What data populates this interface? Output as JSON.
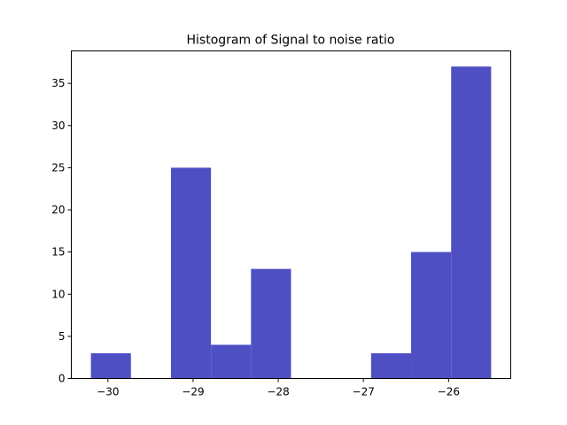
{
  "chart_data": {
    "type": "bar",
    "title": "Histogram of Signal to noise ratio",
    "xlabel": "",
    "ylabel": "",
    "bar_color": "#4f4fc4",
    "bins": [
      {
        "x0": -30.2,
        "x1": -29.73,
        "count": 3
      },
      {
        "x0": -29.73,
        "x1": -29.26,
        "count": 0
      },
      {
        "x0": -29.26,
        "x1": -28.79,
        "count": 25
      },
      {
        "x0": -28.79,
        "x1": -28.32,
        "count": 4
      },
      {
        "x0": -28.32,
        "x1": -27.85,
        "count": 13
      },
      {
        "x0": -27.85,
        "x1": -27.38,
        "count": 0
      },
      {
        "x0": -27.38,
        "x1": -26.91,
        "count": 0
      },
      {
        "x0": -26.91,
        "x1": -26.44,
        "count": 3
      },
      {
        "x0": -26.44,
        "x1": -25.97,
        "count": 15
      },
      {
        "x0": -25.97,
        "x1": -25.5,
        "count": 37
      }
    ],
    "xlim": [
      -30.43,
      -25.27
    ],
    "ylim": [
      0,
      38.85
    ],
    "xticks": [
      -30,
      -29,
      -28,
      -27,
      -26
    ],
    "xtick_labels": [
      "−30",
      "−29",
      "−28",
      "−27",
      "−26"
    ],
    "yticks": [
      0,
      5,
      10,
      15,
      20,
      25,
      30,
      35
    ],
    "ytick_labels": [
      "0",
      "5",
      "10",
      "15",
      "20",
      "25",
      "30",
      "35"
    ],
    "grid": false,
    "legend": "none"
  }
}
